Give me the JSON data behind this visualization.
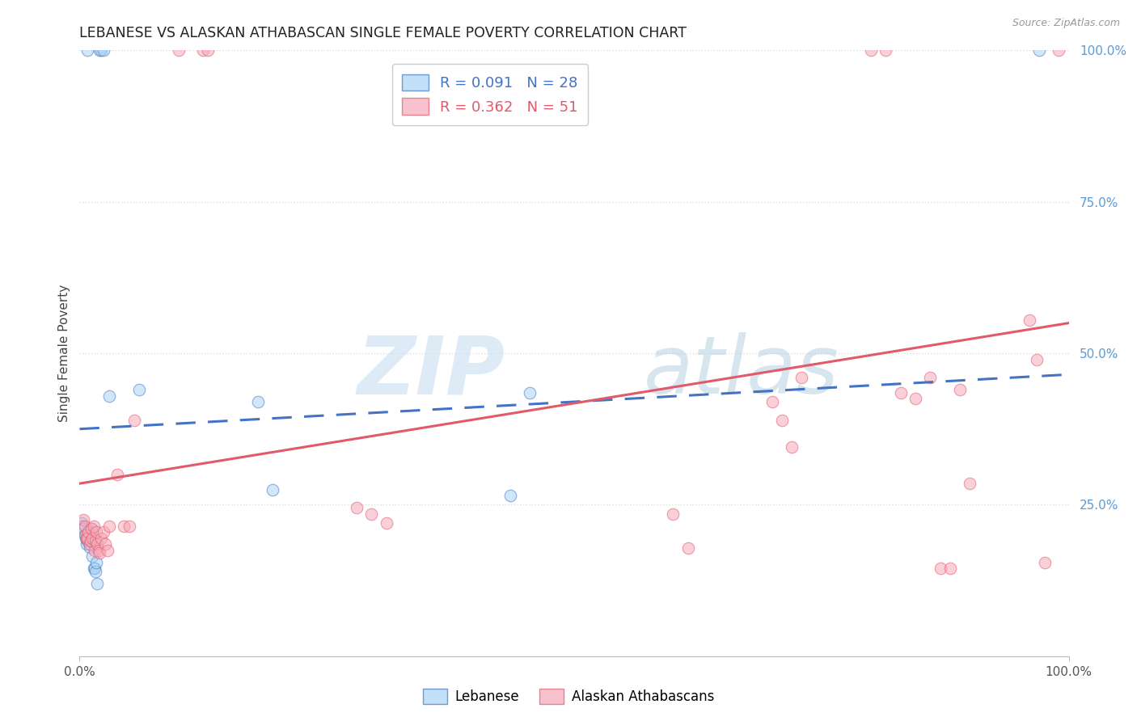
{
  "title": "LEBANESE VS ALASKAN ATHABASCAN SINGLE FEMALE POVERTY CORRELATION CHART",
  "source": "Source: ZipAtlas.com",
  "ylabel": "Single Female Poverty",
  "blue_color": "#7ec8e3",
  "pink_color": "#ffb3ba",
  "blue_line_color": "#4472c4",
  "pink_line_color": "#e05a6a",
  "blue_fill_color": "#a8d4f5",
  "pink_fill_color": "#f5a8b8",
  "watermark_zip": "ZIP",
  "watermark_atlas": "atlas",
  "grid_color": "#dddddd",
  "blue_points_x": [
    0.008,
    0.02,
    0.022,
    0.024,
    0.002,
    0.003,
    0.004,
    0.005,
    0.006,
    0.007,
    0.008,
    0.009,
    0.01,
    0.011,
    0.012,
    0.013,
    0.014,
    0.015,
    0.016,
    0.017,
    0.018,
    0.03,
    0.06,
    0.18,
    0.195,
    0.435,
    0.455,
    0.97
  ],
  "blue_points_y": [
    1.0,
    1.0,
    1.0,
    1.0,
    0.22,
    0.215,
    0.21,
    0.2,
    0.195,
    0.185,
    0.19,
    0.195,
    0.18,
    0.19,
    0.21,
    0.165,
    0.145,
    0.145,
    0.14,
    0.155,
    0.12,
    0.43,
    0.44,
    0.42,
    0.275,
    0.265,
    0.435,
    1.0
  ],
  "pink_points_x": [
    0.004,
    0.005,
    0.006,
    0.007,
    0.008,
    0.009,
    0.01,
    0.011,
    0.012,
    0.013,
    0.014,
    0.015,
    0.016,
    0.017,
    0.018,
    0.019,
    0.02,
    0.022,
    0.024,
    0.026,
    0.028,
    0.03,
    0.038,
    0.045,
    0.05,
    0.055,
    0.1,
    0.125,
    0.13,
    0.28,
    0.295,
    0.31,
    0.6,
    0.615,
    0.7,
    0.71,
    0.72,
    0.73,
    0.8,
    0.815,
    0.83,
    0.845,
    0.86,
    0.87,
    0.88,
    0.89,
    0.9,
    0.96,
    0.968,
    0.976,
    0.99
  ],
  "pink_points_y": [
    0.225,
    0.215,
    0.2,
    0.195,
    0.195,
    0.205,
    0.185,
    0.19,
    0.21,
    0.195,
    0.215,
    0.175,
    0.19,
    0.205,
    0.185,
    0.175,
    0.17,
    0.195,
    0.205,
    0.185,
    0.175,
    0.215,
    0.3,
    0.215,
    0.215,
    0.39,
    1.0,
    1.0,
    1.0,
    0.245,
    0.235,
    0.22,
    0.235,
    0.178,
    0.42,
    0.39,
    0.345,
    0.46,
    1.0,
    1.0,
    0.435,
    0.425,
    0.46,
    0.145,
    0.145,
    0.44,
    0.285,
    0.555,
    0.49,
    0.155,
    1.0
  ],
  "blue_line_intercept": 0.375,
  "blue_line_slope": 0.09,
  "pink_line_intercept": 0.285,
  "pink_line_slope": 0.265,
  "xlim": [
    0.0,
    1.0
  ],
  "ylim": [
    0.0,
    1.0
  ],
  "right_ytick_values": [
    0.25,
    0.5,
    0.75,
    1.0
  ],
  "right_ytick_labels": [
    "25.0%",
    "50.0%",
    "75.0%",
    "100.0%"
  ]
}
